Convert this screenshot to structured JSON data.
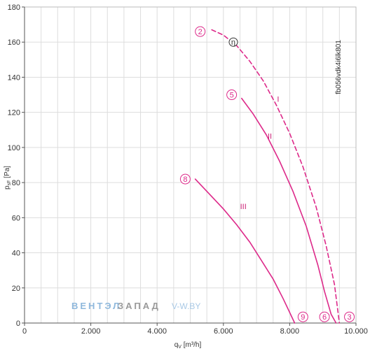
{
  "chart_data": {
    "type": "line",
    "xlabel": "q",
    "xlabel_sub": "V",
    "xlabel_unit": "[m³/h]",
    "ylabel": "p",
    "ylabel_sub": "sF",
    "ylabel_unit": "[Pa]",
    "xlim": [
      0,
      10000
    ],
    "ylim": [
      0,
      180
    ],
    "x_ticks": [
      0,
      2000,
      4000,
      6000,
      8000,
      10000
    ],
    "x_tick_labels": [
      "0",
      "2.000",
      "4.000",
      "6.000",
      "8.000",
      "10.000"
    ],
    "y_ticks": [
      0,
      20,
      40,
      60,
      80,
      100,
      120,
      140,
      160,
      180
    ],
    "y_tick_labels": [
      "0",
      "20",
      "40",
      "60",
      "80",
      "100",
      "120",
      "140",
      "160",
      "180"
    ],
    "grid": true,
    "series": [
      {
        "name": "I",
        "color": "#dd2a8a",
        "dashed": true,
        "x": [
          5650,
          6000,
          6400,
          6800,
          7200,
          7600,
          8000,
          8400,
          8800,
          9100,
          9350,
          9500
        ],
        "y": [
          167,
          164,
          158,
          149,
          138,
          124,
          108,
          89,
          66,
          44,
          22,
          0
        ]
      },
      {
        "name": "II",
        "color": "#dd2a8a",
        "dashed": false,
        "x": [
          6550,
          6900,
          7300,
          7700,
          8100,
          8500,
          8850,
          9050,
          9250,
          9400
        ],
        "y": [
          128,
          119,
          107,
          92,
          75,
          55,
          33,
          18,
          5,
          0
        ]
      },
      {
        "name": "III",
        "color": "#dd2a8a",
        "dashed": false,
        "x": [
          5150,
          5600,
          6000,
          6400,
          6800,
          7200,
          7500,
          7800,
          8000,
          8150
        ],
        "y": [
          82,
          73,
          65,
          56,
          46,
          34,
          25,
          14,
          6,
          0
        ]
      }
    ],
    "point_markers": [
      {
        "label": "2",
        "x": 5300,
        "y": 166
      },
      {
        "label": "5",
        "x": 6250,
        "y": 130
      },
      {
        "label": "8",
        "x": 4850,
        "y": 82
      },
      {
        "label": "9",
        "x": 8400,
        "y": 3.5
      },
      {
        "label": "6",
        "x": 9050,
        "y": 3.5
      },
      {
        "label": "3",
        "x": 9800,
        "y": 3.5
      }
    ],
    "efficiency_marker": {
      "label": "η",
      "x": 6300,
      "y": 160
    },
    "curve_labels": [
      {
        "label": "I",
        "x": 7650,
        "y": 126
      },
      {
        "label": "II",
        "x": 7400,
        "y": 105
      },
      {
        "label": "III",
        "x": 6600,
        "y": 65
      }
    ],
    "code": "fb056vdk4i6lk801",
    "watermark": {
      "part1": "ВЕНТЭЛ",
      "part2": "ЗАПАД",
      "part3": "V-W.BY"
    }
  }
}
